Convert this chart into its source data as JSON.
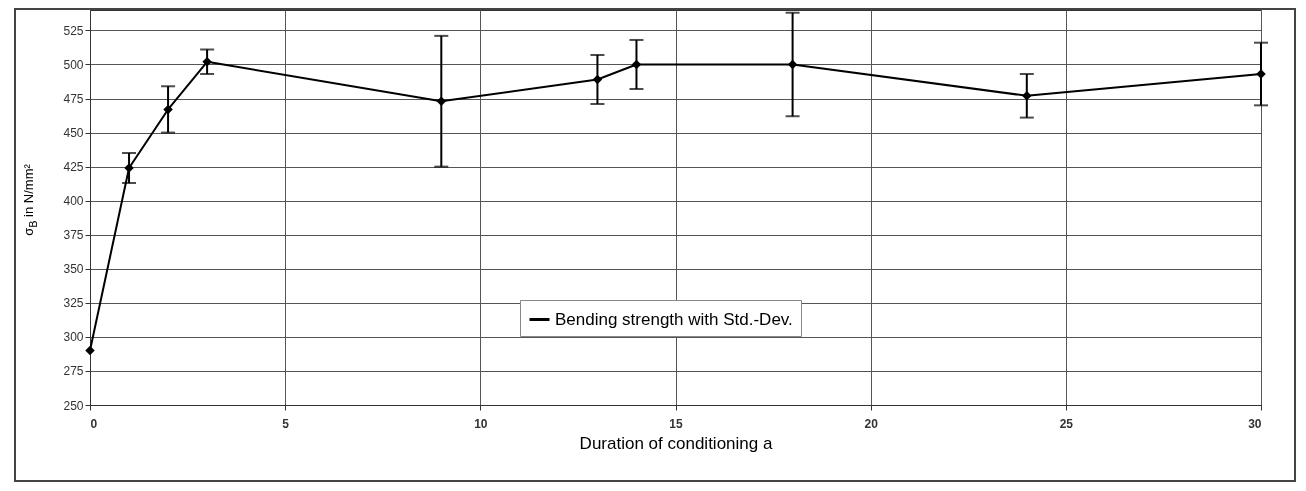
{
  "chart_data": {
    "type": "line",
    "xlabel": "Duration of conditioning a",
    "ylabel": "σ$_{B}$ in N/mm²",
    "x": [
      0,
      1,
      2,
      3,
      9,
      13,
      14,
      18,
      24,
      30
    ],
    "series": [
      {
        "name": "Bending strength with Std.-Dev.",
        "color": "#000000",
        "values": [
          290,
          424,
          467,
          502,
          473,
          489,
          500,
          500,
          477,
          493
        ],
        "errors": [
          null,
          11,
          17,
          9,
          48,
          18,
          18,
          38,
          16,
          23
        ]
      }
    ],
    "xlim": [
      0,
      30
    ],
    "xticks": [
      0,
      5,
      10,
      15,
      20,
      25,
      30
    ],
    "ylim": [
      250,
      540
    ],
    "yticks": [
      250,
      275,
      300,
      325,
      350,
      375,
      400,
      425,
      450,
      475,
      500,
      525
    ],
    "grid": true,
    "legend": "bottom",
    "marker": "diamond",
    "line_style": "solid"
  }
}
